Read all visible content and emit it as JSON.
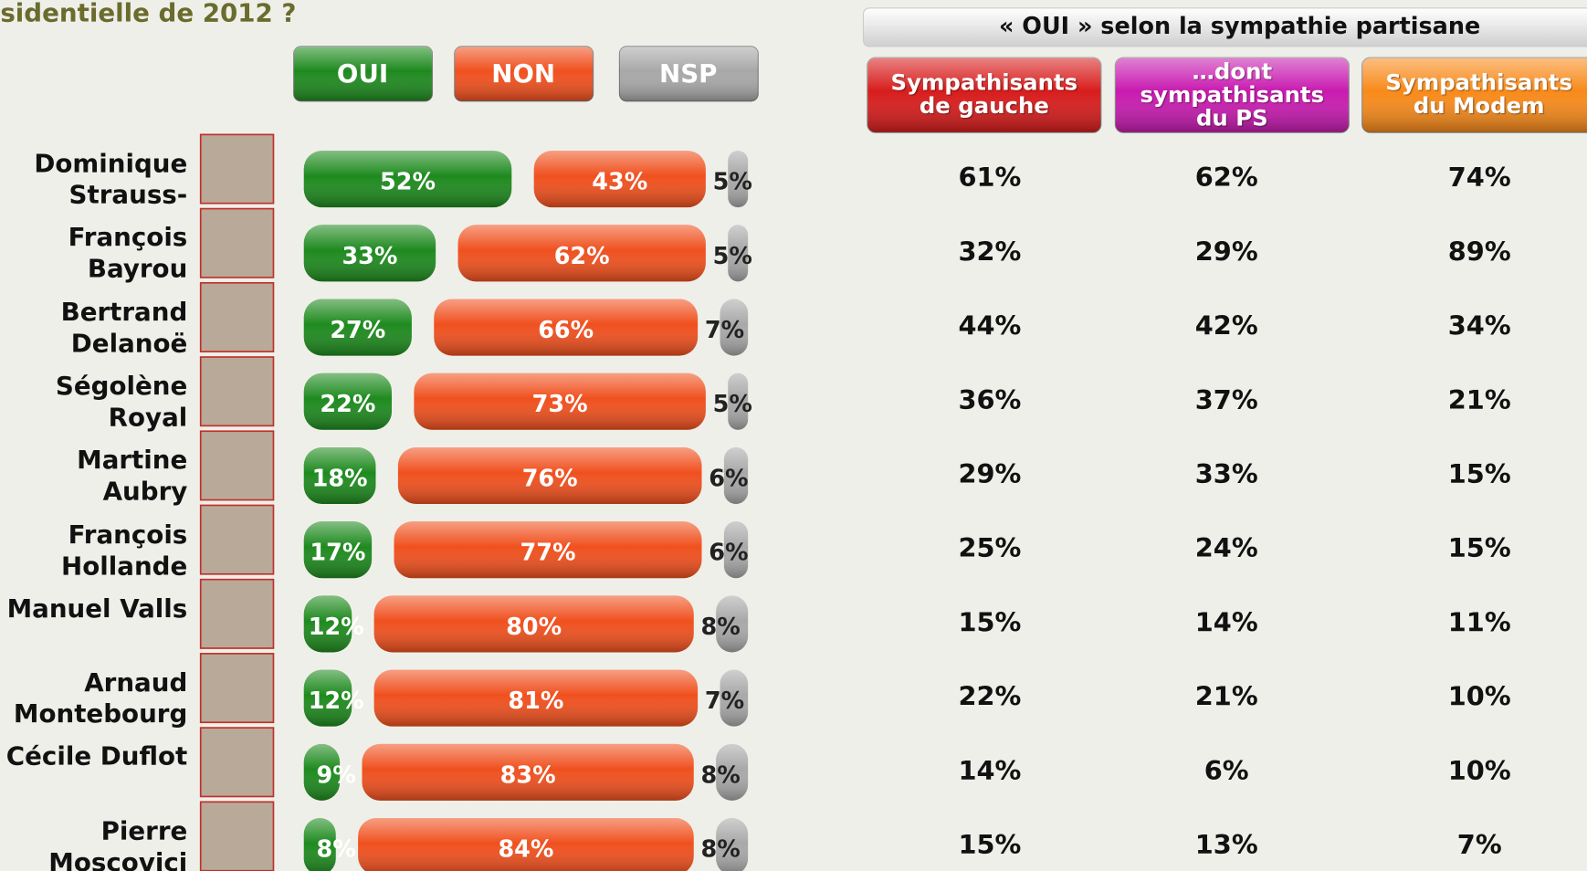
{
  "chart_data": {
    "type": "stacked_bar",
    "title": "sidentielle de 2012 ?",
    "categories": [
      "Dominique Strauss-Kahn",
      "François Bayrou",
      "Bertrand Delanoë",
      "Ségolène Royal",
      "Martine Aubry",
      "François Hollande",
      "Manuel Valls",
      "Arnaud Montebourg",
      "Cécile Duflot",
      "Pierre Moscovici"
    ],
    "series": [
      {
        "name": "OUI",
        "color": "#1e8a1e",
        "values": [
          52,
          33,
          27,
          22,
          18,
          17,
          12,
          12,
          9,
          8
        ],
        "value_labels": [
          "52%",
          "33%",
          "27%",
          "22%",
          "18%",
          "17%",
          "12%",
          "12%",
          "9%",
          "8%"
        ]
      },
      {
        "name": "NON",
        "color": "#f0501e",
        "values": [
          43,
          62,
          66,
          73,
          76,
          77,
          80,
          81,
          83,
          84
        ],
        "value_labels": [
          "43%",
          "62%",
          "66%",
          "73%",
          "76%",
          "77%",
          "80%",
          "81%",
          "83%",
          "84%"
        ]
      },
      {
        "name": "NSP",
        "color": "#a8a8a8",
        "values": [
          5,
          5,
          7,
          5,
          6,
          6,
          8,
          7,
          8,
          8
        ],
        "value_labels": [
          "5%",
          "5%",
          "7%",
          "5%",
          "6%",
          "6%",
          "8%",
          "7%",
          "8%",
          "8%"
        ]
      }
    ]
  },
  "table": {
    "title": "« OUI » selon  la sympathie partisane",
    "columns": [
      {
        "name": "Sympathisants de gauche",
        "color": "#d81c1c"
      },
      {
        "name": "…dont sympathisants du PS",
        "color": "#c81ab0"
      },
      {
        "name": "Sympathisants du Modem",
        "color": "#f88a1a"
      }
    ],
    "rows": [
      [
        "61%",
        "62%",
        "74%"
      ],
      [
        "32%",
        "29%",
        "89%"
      ],
      [
        "44%",
        "42%",
        "34%"
      ],
      [
        "36%",
        "37%",
        "21%"
      ],
      [
        "29%",
        "33%",
        "15%"
      ],
      [
        "25%",
        "24%",
        "15%"
      ],
      [
        "15%",
        "14%",
        "11%"
      ],
      [
        "22%",
        "21%",
        "10%"
      ],
      [
        "14%",
        "6%",
        "10%"
      ],
      [
        "15%",
        "13%",
        "7%"
      ]
    ]
  }
}
